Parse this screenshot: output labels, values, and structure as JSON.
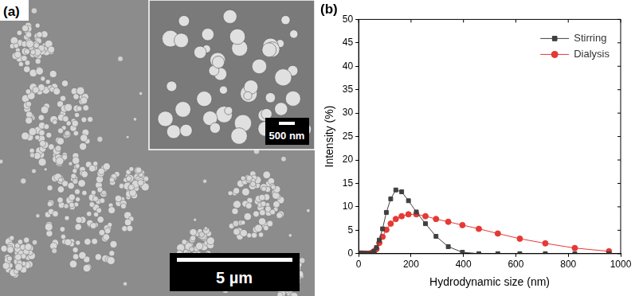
{
  "image_panel": {
    "label": "(a)",
    "scale_bar": "5 µm",
    "inset_scale_bar": "500 nm"
  },
  "chart_data": {
    "type": "line",
    "title": "(b)",
    "x_label": "Hydrodynamic size (nm)",
    "y_label": "Intensity (%)",
    "x": [
      5.615,
      6.503,
      7.531,
      8.721,
      10.1,
      11.7,
      13.54,
      15.69,
      18.17,
      21.04,
      24.36,
      28.21,
      32.67,
      37.84,
      43.82,
      50.75,
      58.77,
      68.06,
      78.82,
      91.28,
      105.7,
      122.4,
      141.8,
      164.2,
      190.1,
      220.2,
      255.0,
      295.3,
      342.0,
      396.1,
      458.7,
      531.2,
      615.1,
      712.4,
      825.0,
      955.4
    ],
    "series": [
      {
        "name": "Stirring",
        "color": "#404040",
        "marker": "square",
        "line_style": "solid",
        "values": [
          0,
          0,
          0,
          0,
          0,
          0,
          0,
          0,
          0,
          0,
          0,
          0,
          0,
          0,
          0,
          0.1,
          0.5,
          1.3,
          2.9,
          5.3,
          8.8,
          11.7,
          13.6,
          13.2,
          11.3,
          8.9,
          6.4,
          3.7,
          1.5,
          0.3,
          0,
          0,
          0,
          0,
          0,
          0
        ]
      },
      {
        "name": "Dialysis",
        "color": "#e53935",
        "marker": "circle",
        "line_style": "solid",
        "values": [
          0,
          0,
          0,
          0,
          0,
          0,
          0,
          0,
          0,
          0,
          0,
          0,
          0,
          0,
          0,
          0.2,
          0.5,
          1.0,
          2.3,
          3.6,
          5.1,
          6.4,
          7.4,
          8.0,
          8.4,
          8.4,
          8.0,
          7.4,
          6.8,
          6.1,
          5.3,
          4.3,
          3.2,
          2.2,
          1.2,
          0.5
        ]
      }
    ],
    "xlim": [
      0,
      1000
    ],
    "xticks": [
      0,
      200,
      400,
      600,
      800,
      1000
    ],
    "ylim": [
      0,
      50
    ],
    "yticks": [
      0,
      5,
      10,
      15,
      20,
      25,
      30,
      35,
      40,
      45,
      50
    ],
    "grid": false,
    "legend": "upper right"
  }
}
